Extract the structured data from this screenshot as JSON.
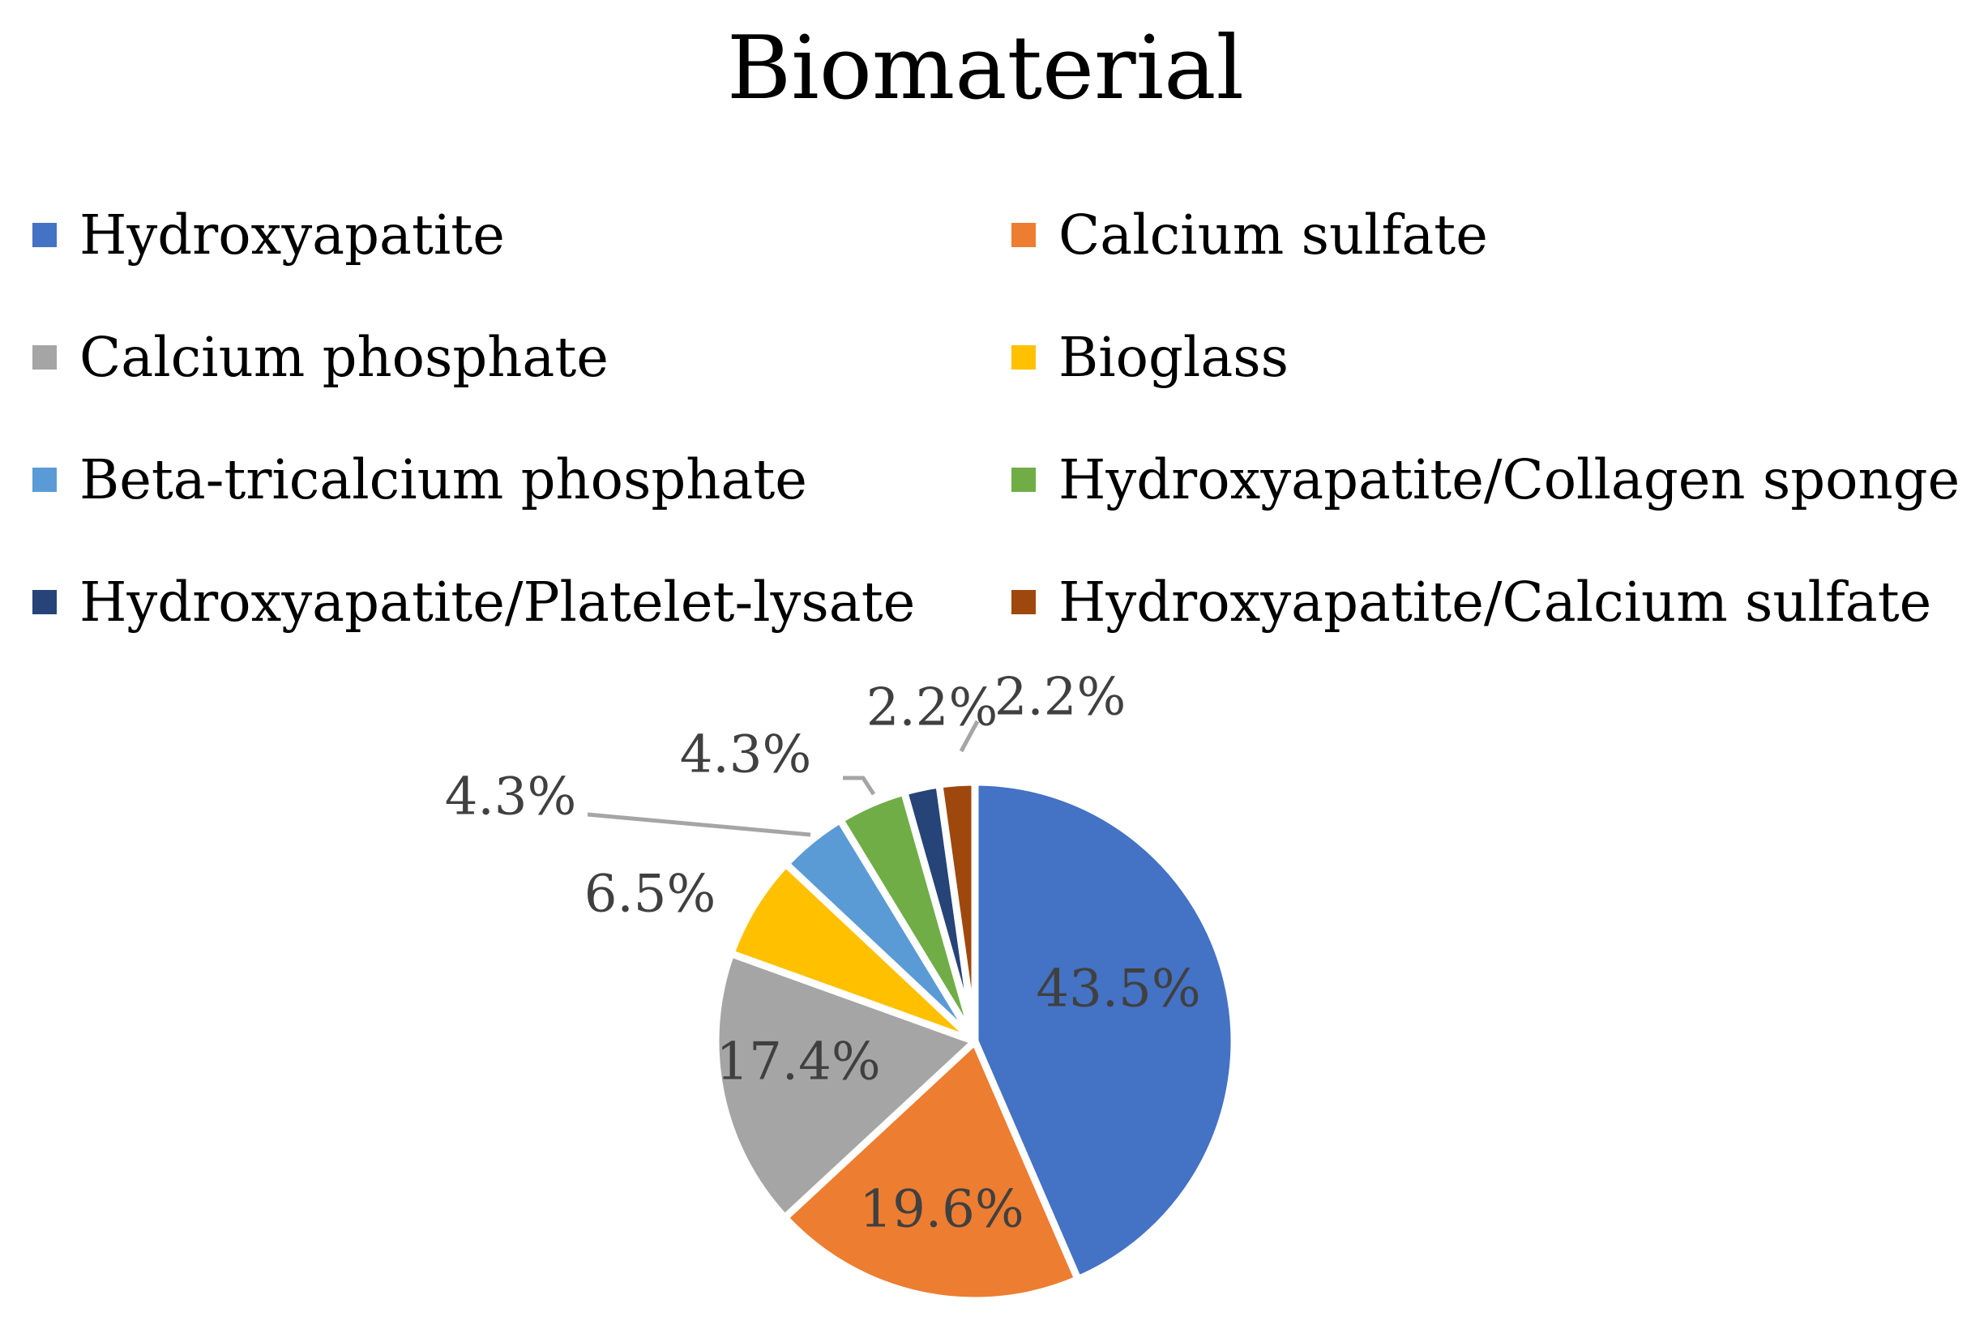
{
  "chart_data": {
    "type": "pie",
    "title": "Biomaterial",
    "legend_position": "top",
    "slices": [
      {
        "label": "Hydroxyapatite",
        "value": 43.5,
        "display": "43.5%",
        "color": "#4472C4"
      },
      {
        "label": "Calcium sulfate",
        "value": 19.6,
        "display": "19.6%",
        "color": "#ED7D31"
      },
      {
        "label": "Calcium phosphate",
        "value": 17.4,
        "display": "17.4%",
        "color": "#A5A5A5"
      },
      {
        "label": "Bioglass",
        "value": 6.5,
        "display": "6.5%",
        "color": "#FFC000"
      },
      {
        "label": "Beta-tricalcium phosphate",
        "value": 4.3,
        "display": "4.3%",
        "color": "#5B9BD5"
      },
      {
        "label": "Hydroxyapatite/Collagen sponge",
        "value": 4.3,
        "display": "4.3%",
        "color": "#70AD47"
      },
      {
        "label": "Hydroxyapatite/Platelet-lysate",
        "value": 2.2,
        "display": "2.2%",
        "color": "#264478"
      },
      {
        "label": "Hydroxyapatite/Calcium sulfate",
        "value": 2.2,
        "display": "2.2%",
        "color": "#9E480E"
      }
    ],
    "label_color": "#404040",
    "leader_color": "#A5A5A5"
  }
}
